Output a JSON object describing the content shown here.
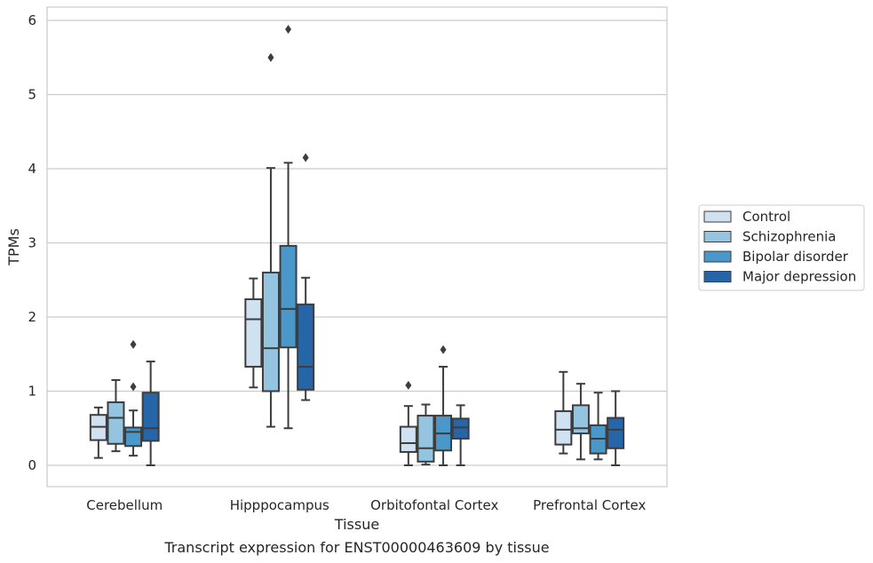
{
  "chart_data": {
    "type": "box",
    "title": "",
    "caption": "Transcript expression for ENST00000463609 by tissue",
    "xlabel": "Tissue",
    "ylabel": "TPMs",
    "ylim": [
      -0.28,
      6.18
    ],
    "yticks": [
      0,
      1,
      2,
      3,
      4,
      5,
      6
    ],
    "grid": "horizontal",
    "legend_position": "right",
    "categories": [
      "Cerebellum",
      "Hipppocampus",
      "Orbitofontal Cortex",
      "Prefrontal Cortex"
    ],
    "series": [
      {
        "name": "Control",
        "color": "#d0e1f2",
        "boxes": [
          {
            "whislo": 0.1,
            "q1": 0.34,
            "med": 0.52,
            "q3": 0.68,
            "whishi": 0.78,
            "fliers": []
          },
          {
            "whislo": 1.05,
            "q1": 1.33,
            "med": 1.97,
            "q3": 2.24,
            "whishi": 2.52,
            "fliers": []
          },
          {
            "whislo": 0.0,
            "q1": 0.18,
            "med": 0.3,
            "q3": 0.52,
            "whishi": 0.8,
            "fliers": [
              1.08
            ]
          },
          {
            "whislo": 0.16,
            "q1": 0.28,
            "med": 0.48,
            "q3": 0.73,
            "whishi": 1.26,
            "fliers": []
          }
        ]
      },
      {
        "name": "Schizophrenia",
        "color": "#94c4df",
        "boxes": [
          {
            "whislo": 0.19,
            "q1": 0.29,
            "med": 0.64,
            "q3": 0.85,
            "whishi": 1.15,
            "fliers": []
          },
          {
            "whislo": 0.52,
            "q1": 1.0,
            "med": 1.58,
            "q3": 2.6,
            "whishi": 4.01,
            "fliers": [
              5.5
            ]
          },
          {
            "whislo": 0.01,
            "q1": 0.05,
            "med": 0.23,
            "q3": 0.67,
            "whishi": 0.82,
            "fliers": []
          },
          {
            "whislo": 0.08,
            "q1": 0.43,
            "med": 0.5,
            "q3": 0.81,
            "whishi": 1.1,
            "fliers": []
          }
        ]
      },
      {
        "name": "Bipolar disorder",
        "color": "#4a98c9",
        "boxes": [
          {
            "whislo": 0.13,
            "q1": 0.26,
            "med": 0.45,
            "q3": 0.51,
            "whishi": 0.74,
            "fliers": [
              1.06,
              1.63
            ]
          },
          {
            "whislo": 0.5,
            "q1": 1.59,
            "med": 2.11,
            "q3": 2.96,
            "whishi": 4.08,
            "fliers": [
              5.88
            ]
          },
          {
            "whislo": 0.0,
            "q1": 0.2,
            "med": 0.43,
            "q3": 0.67,
            "whishi": 1.33,
            "fliers": [
              1.56
            ]
          },
          {
            "whislo": 0.08,
            "q1": 0.16,
            "med": 0.36,
            "q3": 0.54,
            "whishi": 0.98,
            "fliers": []
          }
        ]
      },
      {
        "name": "Major depression",
        "color": "#2666a8",
        "boxes": [
          {
            "whislo": 0.0,
            "q1": 0.33,
            "med": 0.5,
            "q3": 0.98,
            "whishi": 1.4,
            "fliers": []
          },
          {
            "whislo": 0.88,
            "q1": 1.02,
            "med": 1.33,
            "q3": 2.17,
            "whishi": 2.53,
            "fliers": [
              4.15
            ]
          },
          {
            "whislo": 0.0,
            "q1": 0.36,
            "med": 0.51,
            "q3": 0.63,
            "whishi": 0.81,
            "fliers": []
          },
          {
            "whislo": 0.0,
            "q1": 0.23,
            "med": 0.48,
            "q3": 0.64,
            "whishi": 1.0,
            "fliers": []
          }
        ]
      }
    ]
  }
}
